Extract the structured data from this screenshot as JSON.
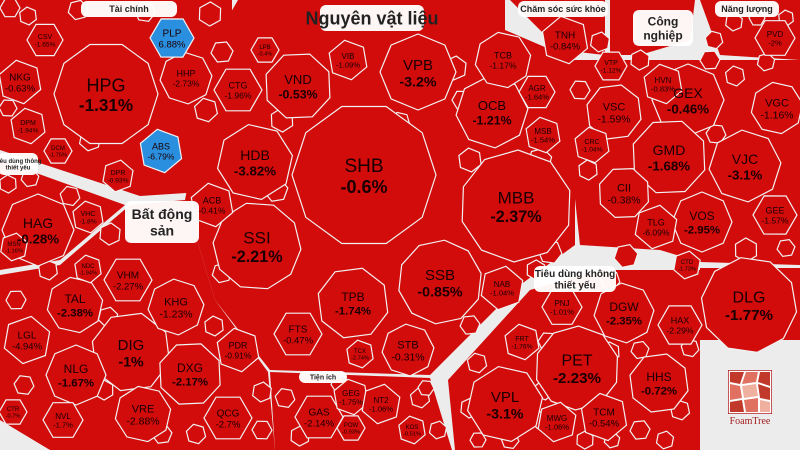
{
  "chart_data": {
    "type": "treemap",
    "title": "",
    "colors": {
      "down": "#d20b0b",
      "up": "#2b8fe0",
      "gap": "#f0f0f0"
    },
    "groups": [
      {
        "name": "Tài chính"
      },
      {
        "name": "Nguyên vật liệu"
      },
      {
        "name": "Chăm sóc sức khỏe"
      },
      {
        "name": "Công nghiệp"
      },
      {
        "name": "Năng lượng"
      },
      {
        "name": "Tiêu dùng thông thiết yếu"
      },
      {
        "name": "Bất động sản"
      },
      {
        "name": "Tiêu dùng không thiết yếu"
      },
      {
        "name": "Tiện ích"
      }
    ],
    "stocks": [
      {
        "ticker": "SHB",
        "change": "-0.6%"
      },
      {
        "ticker": "MBB",
        "change": "-2.37%"
      },
      {
        "ticker": "SSI",
        "change": "-2.21%"
      },
      {
        "ticker": "SSB",
        "change": "-0.85%"
      },
      {
        "ticker": "HDB",
        "change": "-3.82%"
      },
      {
        "ticker": "VPB",
        "change": "-3.2%"
      },
      {
        "ticker": "VND",
        "change": "-0.53%"
      },
      {
        "ticker": "OCB",
        "change": "-1.21%"
      },
      {
        "ticker": "TPB",
        "change": "-1.74%"
      },
      {
        "ticker": "TCB",
        "change": "-1.17%"
      },
      {
        "ticker": "CTG",
        "change": "-1.96%"
      },
      {
        "ticker": "ACB",
        "change": "-0.41%"
      },
      {
        "ticker": "STB",
        "change": "-0.31%"
      },
      {
        "ticker": "FTS",
        "change": "-0.47%"
      },
      {
        "ticker": "VIB",
        "change": "-1.09%"
      },
      {
        "ticker": "AGR",
        "change": "-1.64%"
      },
      {
        "ticker": "MSB",
        "change": "-1.54%"
      },
      {
        "ticker": "NAB",
        "change": "-1.04%"
      },
      {
        "ticker": "LPB",
        "change": "-0.4%"
      },
      {
        "ticker": "TCX",
        "change": "-2.74%"
      },
      {
        "ticker": "HPG",
        "change": "-1.31%"
      },
      {
        "ticker": "NKG",
        "change": "-0.63%"
      },
      {
        "ticker": "HHP",
        "change": "-2.73%"
      },
      {
        "ticker": "PLP",
        "change": "6.88%"
      },
      {
        "ticker": "ABS",
        "change": "-6.79%"
      },
      {
        "ticker": "CSV",
        "change": "-1.65%"
      },
      {
        "ticker": "DPM",
        "change": "-1.94%"
      },
      {
        "ticker": "DPR",
        "change": "-0.93%"
      },
      {
        "ticker": "DCM",
        "change": "-1.75%"
      },
      {
        "ticker": "TNH",
        "change": "-0.84%"
      },
      {
        "ticker": "GEX",
        "change": "-0.46%"
      },
      {
        "ticker": "GMD",
        "change": "-1.68%"
      },
      {
        "ticker": "VJC",
        "change": "-3.1%"
      },
      {
        "ticker": "VSC",
        "change": "-1.59%"
      },
      {
        "ticker": "VGC",
        "change": "-1.16%"
      },
      {
        "ticker": "VOS",
        "change": "-2.95%"
      },
      {
        "ticker": "CII",
        "change": "-0.38%"
      },
      {
        "ticker": "TLG",
        "change": "-6.09%"
      },
      {
        "ticker": "GEE",
        "change": "-1.57%"
      },
      {
        "ticker": "HVN",
        "change": "-0.83%"
      },
      {
        "ticker": "VTP",
        "change": "-1.12%"
      },
      {
        "ticker": "CRC",
        "change": "-1.04%"
      },
      {
        "ticker": "CTD",
        "change": "-1.73%"
      },
      {
        "ticker": "PVD",
        "change": "-2%"
      },
      {
        "ticker": "DLG",
        "change": "-1.77%"
      },
      {
        "ticker": "HAG",
        "change": "-0.28%"
      },
      {
        "ticker": "VHC",
        "change": "-1.8%"
      },
      {
        "ticker": "MSN",
        "change": "-1.16%"
      },
      {
        "ticker": "DIG",
        "change": "-1%"
      },
      {
        "ticker": "TAL",
        "change": "-2.38%"
      },
      {
        "ticker": "NLG",
        "change": "-1.67%"
      },
      {
        "ticker": "DXG",
        "change": "-2.17%"
      },
      {
        "ticker": "KHG",
        "change": "-1.23%"
      },
      {
        "ticker": "VHM",
        "change": "-2.27%"
      },
      {
        "ticker": "VRE",
        "change": "-2.88%"
      },
      {
        "ticker": "QCG",
        "change": "-2.7%"
      },
      {
        "ticker": "PDR",
        "change": "-0.91%"
      },
      {
        "ticker": "LGL",
        "change": "-4.94%"
      },
      {
        "ticker": "NVL",
        "change": "-1.7%"
      },
      {
        "ticker": "NDC",
        "change": "-1.94%"
      },
      {
        "ticker": "CTR",
        "change": "-0.7%"
      },
      {
        "ticker": "PET",
        "change": "-2.23%"
      },
      {
        "ticker": "DGW",
        "change": "-2.35%"
      },
      {
        "ticker": "HHS",
        "change": "-0.72%"
      },
      {
        "ticker": "VPL",
        "change": "-3.1%"
      },
      {
        "ticker": "HAX",
        "change": "-2.29%"
      },
      {
        "ticker": "TCM",
        "change": "-0.54%"
      },
      {
        "ticker": "MWG",
        "change": "-1.06%"
      },
      {
        "ticker": "PNJ",
        "change": "-1.01%"
      },
      {
        "ticker": "FRT",
        "change": "-1.76%"
      },
      {
        "ticker": "GAS",
        "change": "-2.14%"
      },
      {
        "ticker": "GEG",
        "change": "-1.75%"
      },
      {
        "ticker": "NT2",
        "change": "-1.06%"
      },
      {
        "ticker": "POW",
        "change": "-0.93%"
      },
      {
        "ticker": "KOS",
        "change": "-0.51%"
      }
    ]
  },
  "logo": {
    "name": "FoamTree"
  }
}
